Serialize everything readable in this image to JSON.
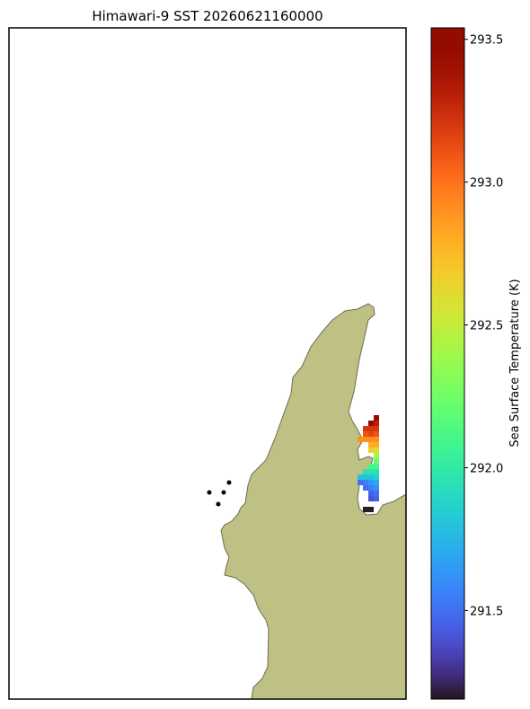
{
  "title": "Himawari-9 SST 20260621160000",
  "colormap": "turbo",
  "colorbar": {
    "label": "Sea Surface Temperature (K)",
    "lim": [
      291.19,
      293.54
    ],
    "ticks": [
      291.5,
      {
        "value": 292,
        "label": "292.0"
      },
      292.5,
      {
        "value": 293,
        "label": "293.0"
      },
      293.5
    ]
  },
  "sst_grid": [
    [
      null,
      null,
      null,
      293.5
    ],
    [
      null,
      null,
      293.45,
      293.3
    ],
    [
      null,
      293.2,
      293.2,
      293.2
    ],
    [
      null,
      293.1,
      293.15,
      293.1
    ],
    [
      292.9,
      292.9,
      292.9,
      292.9
    ],
    [
      null,
      null,
      292.8,
      292.8
    ],
    [
      null,
      null,
      292.65,
      292.6
    ],
    [
      null,
      null,
      null,
      292.4
    ],
    [
      null,
      null,
      null,
      292.2
    ],
    [
      null,
      null,
      292.1,
      292.1
    ],
    [
      null,
      291.95,
      291.95,
      291.95
    ],
    [
      291.8,
      291.8,
      291.8,
      291.85
    ],
    [
      291.5,
      291.55,
      291.65,
      291.7
    ],
    [
      null,
      291.5,
      291.55,
      291.6
    ],
    [
      null,
      null,
      291.45,
      291.5
    ],
    [
      null,
      null,
      291.4,
      291.45
    ],
    [
      null,
      null,
      null,
      null
    ],
    [
      null,
      291.2,
      291.2,
      null
    ]
  ]
}
